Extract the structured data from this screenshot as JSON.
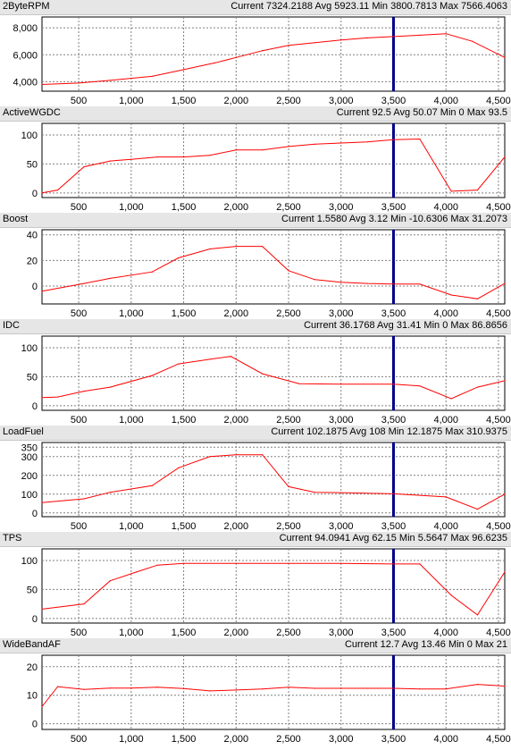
{
  "colors": {
    "series": "#ff0000",
    "cursor": "#00008b",
    "header_bg": "#e6e6e6",
    "grid": "#808080"
  },
  "chart_data": [
    {
      "type": "line",
      "name": "2ByteRPM",
      "stats": {
        "current": "Current 7324.2188",
        "avg": "Avg 5923.11",
        "min": "Min 3800.7813",
        "max": "Max 7566.4063"
      },
      "xticks": [
        "500",
        "1,000",
        "1,500",
        "2,000",
        "2,500",
        "3,000",
        "3,500",
        "4,000",
        "4,500"
      ],
      "yticks": [
        "4,000",
        "6,000",
        "8,000"
      ],
      "xlim": [
        150,
        4560
      ],
      "ylim": [
        3300,
        8800
      ],
      "cursor_x": 3500,
      "x": [
        150,
        500,
        800,
        1200,
        1500,
        1800,
        2000,
        2250,
        2500,
        2750,
        3000,
        3250,
        3500,
        3750,
        4000,
        4250,
        4560
      ],
      "y": [
        3800,
        3900,
        4100,
        4400,
        4900,
        5400,
        5800,
        6300,
        6700,
        6900,
        7100,
        7250,
        7350,
        7450,
        7560,
        7000,
        5800
      ]
    },
    {
      "type": "line",
      "name": "ActiveWGDC",
      "stats": {
        "current": "Current 92.5",
        "avg": "Avg 50.07",
        "min": "Min 0",
        "max": "Max 93.5"
      },
      "xticks": [
        "500",
        "1,000",
        "1,500",
        "2,000",
        "2,500",
        "3,000",
        "3,500",
        "4,000",
        "4,500"
      ],
      "yticks": [
        "0",
        "50",
        "100"
      ],
      "xlim": [
        150,
        4560
      ],
      "ylim": [
        -8,
        120
      ],
      "cursor_x": 3500,
      "x": [
        150,
        300,
        550,
        800,
        1000,
        1250,
        1500,
        1750,
        2000,
        2250,
        2500,
        2750,
        3000,
        3250,
        3500,
        3750,
        4050,
        4300,
        4560
      ],
      "y": [
        0,
        5,
        45,
        55,
        58,
        62,
        62,
        65,
        74,
        74,
        80,
        84,
        86,
        88,
        92,
        93,
        3,
        5,
        62
      ]
    },
    {
      "type": "line",
      "name": "Boost",
      "stats": {
        "current": "Current 1.5580",
        "avg": "Avg 3.12",
        "min": "Min -10.6306",
        "max": "Max 31.2073"
      },
      "xticks": [
        "500",
        "1,000",
        "1,500",
        "2,000",
        "2,500",
        "3,000",
        "3,500",
        "4,000",
        "4,500"
      ],
      "yticks": [
        "0",
        "20",
        "40"
      ],
      "xlim": [
        150,
        4560
      ],
      "ylim": [
        -14,
        44
      ],
      "cursor_x": 3500,
      "x": [
        150,
        550,
        800,
        1200,
        1450,
        1750,
        2000,
        2250,
        2500,
        2750,
        3000,
        3250,
        3500,
        3750,
        4050,
        4300,
        4560
      ],
      "y": [
        -4,
        2,
        6,
        11,
        22,
        29,
        31,
        31,
        12,
        5,
        3,
        2,
        1.5,
        1.5,
        -7,
        -10,
        2
      ]
    },
    {
      "type": "line",
      "name": "IDC",
      "stats": {
        "current": "Current 36.1768",
        "avg": "Avg 31.41",
        "min": "Min 0",
        "max": "Max 86.8656"
      },
      "xticks": [
        "500",
        "1,000",
        "1,500",
        "2,000",
        "2,500",
        "3,000",
        "3,500",
        "4,000",
        "4,500"
      ],
      "yticks": [
        "0",
        "50",
        "100"
      ],
      "xlim": [
        150,
        4560
      ],
      "ylim": [
        -8,
        120
      ],
      "cursor_x": 3500,
      "x": [
        150,
        300,
        550,
        800,
        1200,
        1450,
        1750,
        1950,
        2250,
        2600,
        3000,
        3500,
        3750,
        4050,
        4300,
        4560
      ],
      "y": [
        14,
        15,
        25,
        32,
        52,
        72,
        80,
        85,
        55,
        38,
        37,
        37,
        34,
        12,
        32,
        43
      ]
    },
    {
      "type": "line",
      "name": "LoadFuel",
      "stats": {
        "current": "Current 102.1875",
        "avg": "Avg 108",
        "min": "Min 12.1875",
        "max": "Max 310.9375"
      },
      "xticks": [
        "500",
        "1,000",
        "1,500",
        "2,000",
        "2,500",
        "3,000",
        "3,500",
        "4,000",
        "4,500"
      ],
      "yticks": [
        "0",
        "100",
        "200",
        "300",
        "350"
      ],
      "xlim": [
        150,
        4560
      ],
      "ylim": [
        -20,
        375
      ],
      "cursor_x": 3500,
      "x": [
        150,
        550,
        800,
        1200,
        1450,
        1750,
        2000,
        2250,
        2500,
        2750,
        3000,
        3500,
        4000,
        4300,
        4560
      ],
      "y": [
        55,
        75,
        110,
        145,
        240,
        300,
        310,
        310,
        140,
        110,
        108,
        102,
        85,
        20,
        100
      ]
    },
    {
      "type": "line",
      "name": "TPS",
      "stats": {
        "current": "Current 94.0941",
        "avg": "Avg 62.15",
        "min": "Min 5.5647",
        "max": "Max 96.6235"
      },
      "xticks": [
        "500",
        "1,000",
        "1,500",
        "2,000",
        "2,500",
        "3,000",
        "3,500",
        "4,000",
        "4,500"
      ],
      "yticks": [
        "0",
        "50",
        "100"
      ],
      "xlim": [
        150,
        4560
      ],
      "ylim": [
        -8,
        120
      ],
      "cursor_x": 3500,
      "x": [
        150,
        550,
        800,
        1050,
        1250,
        1500,
        2000,
        2500,
        3000,
        3500,
        3750,
        4050,
        4300,
        4560
      ],
      "y": [
        16,
        25,
        65,
        80,
        92,
        95,
        95,
        95,
        95,
        94,
        94,
        40,
        6,
        80
      ]
    },
    {
      "type": "line",
      "name": "WideBandAF",
      "stats": {
        "current": "Current 12.7",
        "avg": "Avg 13.46",
        "min": "Min 0",
        "max": "Max 21"
      },
      "xticks": [
        "500",
        "1,000",
        "1,500",
        "2,000",
        "2,500",
        "3,000",
        "3,500",
        "4,000",
        "4,500"
      ],
      "yticks": [
        "0",
        "10",
        "20"
      ],
      "xlim": [
        150,
        4560
      ],
      "ylim": [
        -2,
        24
      ],
      "cursor_x": 3500,
      "x": [
        150,
        300,
        550,
        800,
        1000,
        1250,
        1500,
        1750,
        2000,
        2250,
        2500,
        2750,
        3000,
        3250,
        3500,
        3750,
        4000,
        4300,
        4560
      ],
      "y": [
        6,
        13,
        12,
        12.5,
        12.5,
        12.8,
        12.3,
        11.5,
        11.8,
        12.2,
        12.8,
        12.4,
        12.4,
        12.4,
        12.4,
        12.2,
        12.2,
        13.8,
        13.2
      ]
    }
  ]
}
